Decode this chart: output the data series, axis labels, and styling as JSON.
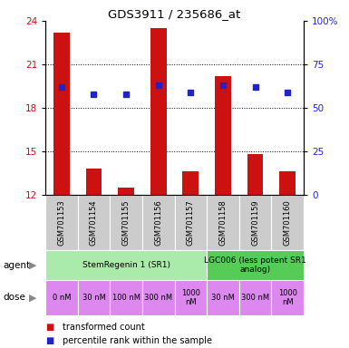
{
  "title": "GDS3911 / 235686_at",
  "samples": [
    "GSM701153",
    "GSM701154",
    "GSM701155",
    "GSM701156",
    "GSM701157",
    "GSM701158",
    "GSM701159",
    "GSM701160"
  ],
  "bar_values": [
    23.2,
    13.8,
    12.5,
    23.5,
    13.6,
    20.2,
    14.8,
    13.6
  ],
  "percentile_values": [
    62,
    58,
    58,
    63,
    59,
    63,
    62,
    59
  ],
  "ylim_left": [
    12,
    24
  ],
  "ylim_right": [
    0,
    100
  ],
  "yticks_left": [
    12,
    15,
    18,
    21,
    24
  ],
  "yticks_right": [
    0,
    25,
    50,
    75,
    100
  ],
  "bar_color": "#cc1111",
  "dot_color": "#2222cc",
  "agent_row": [
    {
      "label": "StemRegenin 1 (SR1)",
      "span": [
        0,
        5
      ],
      "color": "#aaeaaa"
    },
    {
      "label": "LGC006 (less potent SR1\nanalog)",
      "span": [
        5,
        8
      ],
      "color": "#55cc55"
    }
  ],
  "dose_row": [
    {
      "label": "0 nM",
      "span": [
        0,
        1
      ]
    },
    {
      "label": "30 nM",
      "span": [
        1,
        2
      ]
    },
    {
      "label": "100 nM",
      "span": [
        2,
        3
      ]
    },
    {
      "label": "300 nM",
      "span": [
        3,
        4
      ]
    },
    {
      "label": "1000\nnM",
      "span": [
        4,
        5
      ]
    },
    {
      "label": "30 nM",
      "span": [
        5,
        6
      ]
    },
    {
      "label": "300 nM",
      "span": [
        6,
        7
      ]
    },
    {
      "label": "1000\nnM",
      "span": [
        7,
        8
      ]
    }
  ],
  "dose_color": "#dd88ee",
  "sample_bg_color": "#cccccc",
  "legend_items": [
    {
      "color": "#cc1111",
      "label": "transformed count"
    },
    {
      "color": "#2222cc",
      "label": "percentile rank within the sample"
    }
  ],
  "background_color": "#ffffff",
  "arrow_color": "#888888",
  "grid_dotted_ticks": [
    15,
    18,
    21
  ]
}
